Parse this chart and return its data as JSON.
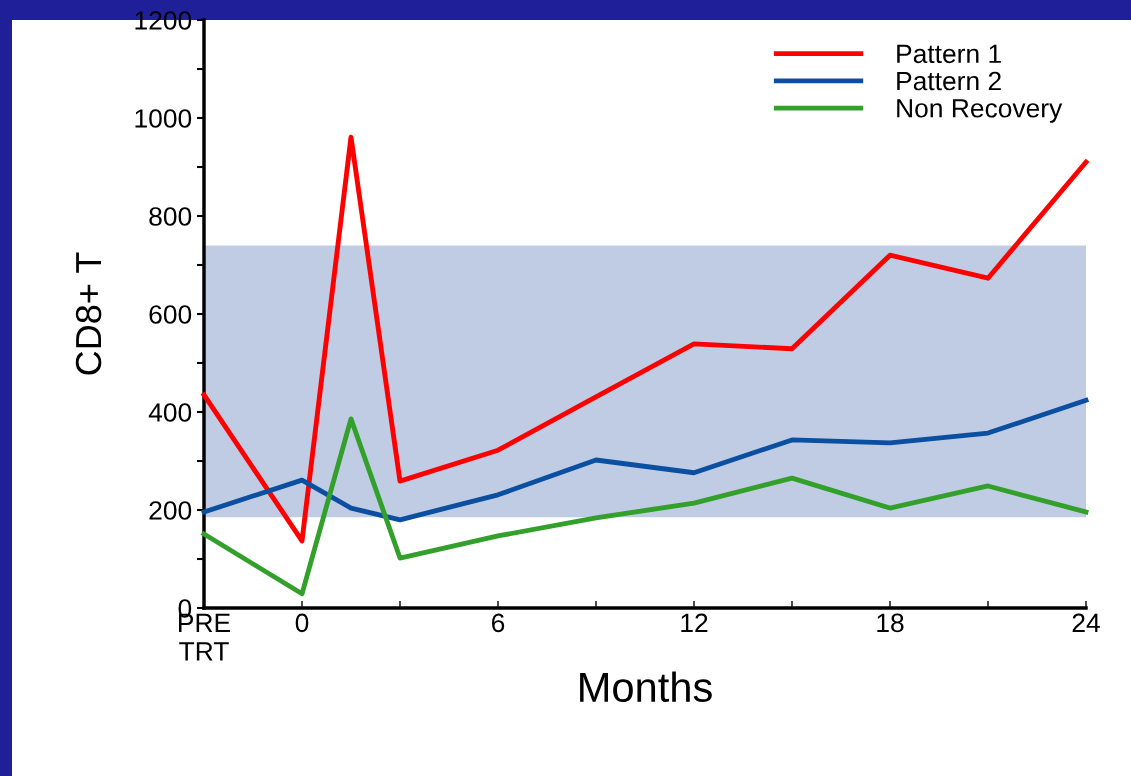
{
  "chart_data": {
    "type": "line",
    "xlabel": "Months",
    "ylabel": "CD8+ T",
    "x": [
      -3,
      0,
      1.5,
      3,
      6,
      9,
      12,
      15,
      18,
      21,
      24
    ],
    "series": [
      {
        "name": "Pattern 1",
        "color": "#ff0000",
        "values": [
          435,
          137,
          961,
          259,
          322,
          431,
          539,
          529,
          720,
          673,
          910
        ]
      },
      {
        "name": "Pattern 2",
        "color": "#0b4fa0",
        "values": [
          196,
          261,
          204,
          180,
          231,
          302,
          276,
          343,
          337,
          357,
          424
        ]
      },
      {
        "name": "Non Recovery",
        "color": "#33a02c",
        "values": [
          151,
          29,
          386,
          102,
          147,
          184,
          214,
          265,
          204,
          249,
          196
        ]
      }
    ],
    "bands": [
      {
        "axis": "y",
        "from": 185,
        "to": 740,
        "color": "#c0cce4"
      }
    ],
    "xlim": [
      -3,
      24
    ],
    "xticks": [
      {
        "value": -3,
        "label": "PRE\nTRT"
      },
      0,
      {
        "value": 3,
        "label": null
      },
      6,
      {
        "value": 9,
        "label": null
      },
      12,
      {
        "value": 15,
        "label": null
      },
      18,
      {
        "value": 21,
        "label": null
      },
      24
    ],
    "ylim": [
      0,
      1200
    ],
    "yticks": [
      0,
      {
        "value": 100,
        "label": null
      },
      200,
      {
        "value": 300,
        "label": null
      },
      400,
      {
        "value": 500,
        "label": null
      },
      600,
      {
        "value": 700,
        "label": null
      },
      800,
      {
        "value": 900,
        "label": null
      },
      1000,
      {
        "value": 1100,
        "label": null
      },
      1200
    ],
    "grid": false,
    "legend": "top right",
    "marker": "none",
    "line_style": "solid"
  }
}
